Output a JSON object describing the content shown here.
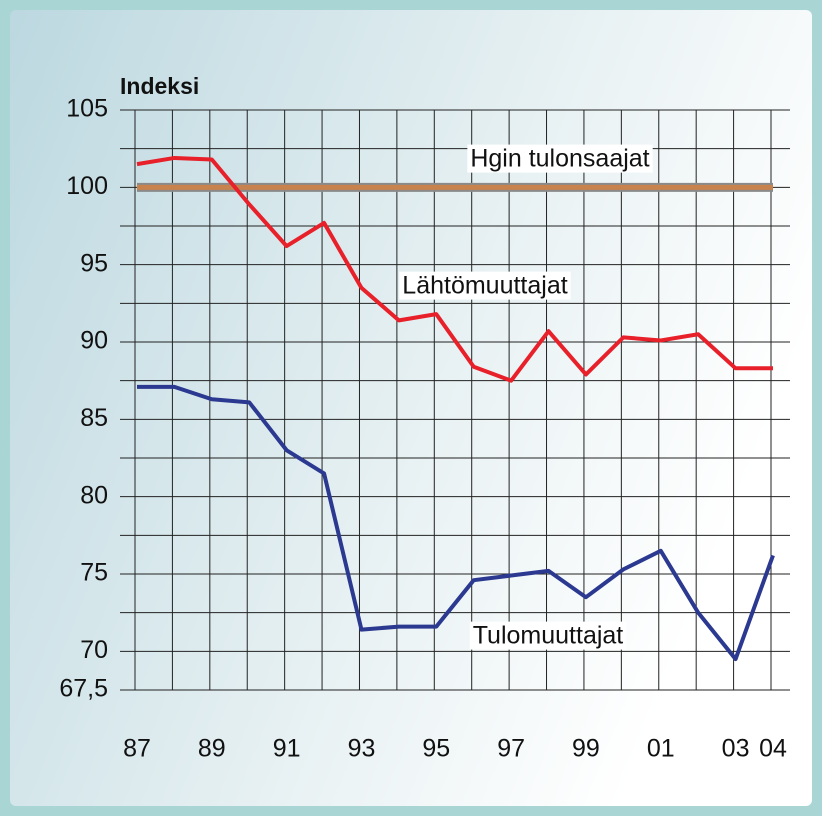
{
  "chart_data": {
    "type": "line",
    "y_axis_label": "Indeksi",
    "categories": [
      "87",
      null,
      "89",
      null,
      "91",
      null,
      "93",
      null,
      "95",
      null,
      "97",
      null,
      "99",
      null,
      "01",
      null,
      "03",
      "04"
    ],
    "series": [
      {
        "name": "Hgin tulonsaajat",
        "color": "#c8824e",
        "values": [
          100,
          100,
          100,
          100,
          100,
          100,
          100,
          100,
          100,
          100,
          100,
          100,
          100,
          100,
          100,
          100,
          100,
          100
        ]
      },
      {
        "name": "Lähtömuuttajat",
        "color": "#e8202a",
        "values": [
          101.5,
          101.9,
          101.8,
          98.9,
          96.2,
          97.7,
          93.5,
          91.4,
          91.8,
          88.4,
          87.5,
          90.7,
          87.9,
          90.3,
          90.1,
          90.5,
          88.3,
          88.3
        ]
      },
      {
        "name": "Tulomuuttajat",
        "color": "#2b3990",
        "values": [
          87.1,
          87.1,
          86.3,
          86.1,
          83,
          81.5,
          71.4,
          71.6,
          71.6,
          74.6,
          74.9,
          75.2,
          73.5,
          75.3,
          76.5,
          72.5,
          69.5,
          76.2
        ]
      }
    ],
    "ylim": [
      67.5,
      105
    ],
    "yticks": [
      {
        "value": 67.5,
        "label": "67,5"
      },
      70,
      75,
      80,
      85,
      90,
      95,
      100,
      105
    ],
    "ygrid": [
      67.5,
      70,
      72.5,
      75,
      77.5,
      80,
      82.5,
      85,
      87.5,
      90,
      92.5,
      95,
      97.5,
      100,
      102.5,
      105
    ],
    "grid": true
  }
}
